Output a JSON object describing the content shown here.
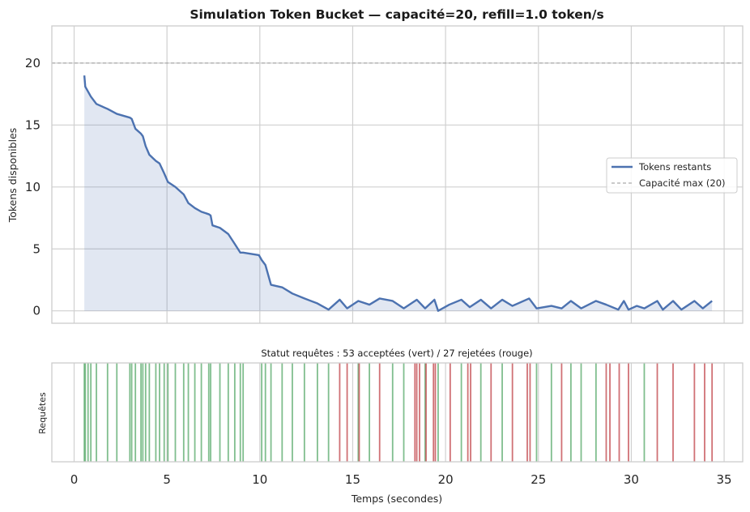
{
  "chart_data": [
    {
      "type": "area",
      "title": "Simulation Token Bucket — capacité=20, refill=1.0 token/s",
      "ylabel": "Tokens disponibles",
      "xlim": [
        -1.2,
        36.0
      ],
      "ylim": [
        -1.0,
        23.0
      ],
      "yticks": [
        0,
        5,
        10,
        15,
        20
      ],
      "xgrid": [
        0,
        5,
        10,
        15,
        20,
        25,
        30,
        35
      ],
      "grid": true,
      "legend_position": "right",
      "capacity_line": {
        "y": 20,
        "color": "#aaaaaa",
        "style": "dashed"
      },
      "series": [
        {
          "name": "Tokens restants",
          "color": "#4c72b0",
          "fill_color": "#4c72b0",
          "x": [
            0.55,
            0.6,
            0.75,
            0.9,
            1.2,
            1.8,
            2.3,
            3.0,
            3.1,
            3.3,
            3.6,
            3.7,
            3.85,
            4.05,
            4.4,
            4.6,
            4.85,
            5.05,
            5.45,
            5.9,
            6.15,
            6.5,
            6.85,
            7.25,
            7.35,
            7.45,
            7.85,
            8.3,
            8.65,
            8.95,
            9.1,
            9.95,
            10.1,
            10.3,
            10.6,
            11.2,
            11.75,
            12.4,
            13.1,
            13.7,
            14.3,
            14.7,
            15.3,
            15.9,
            16.45,
            17.15,
            17.75,
            18.45,
            18.9,
            19.4,
            19.6,
            20.2,
            20.85,
            21.3,
            21.9,
            22.45,
            23.05,
            23.6,
            24.5,
            24.9,
            25.7,
            26.25,
            26.75,
            27.3,
            28.1,
            28.65,
            29.3,
            29.6,
            29.85,
            30.3,
            30.7,
            31.4,
            31.7,
            32.25,
            32.7,
            33.4,
            33.85,
            34.35
          ],
          "y": [
            19.0,
            18.1,
            17.7,
            17.3,
            16.7,
            16.3,
            15.9,
            15.6,
            15.5,
            14.7,
            14.3,
            14.1,
            13.3,
            12.6,
            12.1,
            11.9,
            11.1,
            10.4,
            10.0,
            9.4,
            8.7,
            8.3,
            8.0,
            7.8,
            7.7,
            6.9,
            6.7,
            6.2,
            5.4,
            4.7,
            4.7,
            4.5,
            4.1,
            3.7,
            2.1,
            1.9,
            1.4,
            1.0,
            0.6,
            0.1,
            0.9,
            0.2,
            0.8,
            0.5,
            1.0,
            0.8,
            0.2,
            0.9,
            0.2,
            0.9,
            0.0,
            0.5,
            0.9,
            0.3,
            0.9,
            0.2,
            0.9,
            0.4,
            1.0,
            0.2,
            0.4,
            0.2,
            0.8,
            0.2,
            0.8,
            0.5,
            0.1,
            0.8,
            0.1,
            0.4,
            0.2,
            0.8,
            0.1,
            0.8,
            0.1,
            0.8,
            0.2,
            0.8
          ]
        },
        {
          "name": "Capacité max (20)",
          "color": "#aaaaaa"
        }
      ]
    },
    {
      "type": "event",
      "title": "Statut requêtes : 53 acceptées (vert) / 27 rejetées (rouge)",
      "xlabel": "Temps (secondes)",
      "ylabel": "Requêtes",
      "xlim": [
        -1.2,
        36.0
      ],
      "xticks": [
        0,
        5,
        10,
        15,
        20,
        25,
        30,
        35
      ],
      "grid": true,
      "accepted_color": "#55a868",
      "rejected_color": "#c44e52",
      "accepted": [
        0.55,
        0.6,
        0.75,
        0.9,
        1.2,
        1.8,
        2.3,
        3.0,
        3.1,
        3.3,
        3.6,
        3.7,
        3.85,
        4.05,
        4.4,
        4.6,
        4.85,
        5.05,
        5.45,
        5.9,
        6.15,
        6.5,
        6.85,
        7.25,
        7.35,
        7.85,
        8.3,
        8.65,
        8.95,
        9.1,
        10.1,
        10.3,
        10.6,
        11.2,
        11.75,
        12.4,
        13.1,
        13.7,
        15.3,
        15.9,
        17.15,
        17.75,
        18.9,
        19.6,
        20.85,
        21.9,
        23.05,
        24.9,
        25.7,
        26.75,
        27.3,
        28.1,
        30.7
      ],
      "rejected": [
        14.3,
        14.7,
        15.35,
        16.45,
        18.35,
        18.45,
        18.6,
        18.95,
        19.35,
        19.45,
        20.25,
        21.2,
        21.35,
        22.45,
        23.6,
        24.4,
        24.55,
        26.25,
        28.65,
        28.85,
        29.35,
        29.85,
        31.4,
        32.25,
        33.4,
        33.95,
        34.35
      ]
    }
  ]
}
